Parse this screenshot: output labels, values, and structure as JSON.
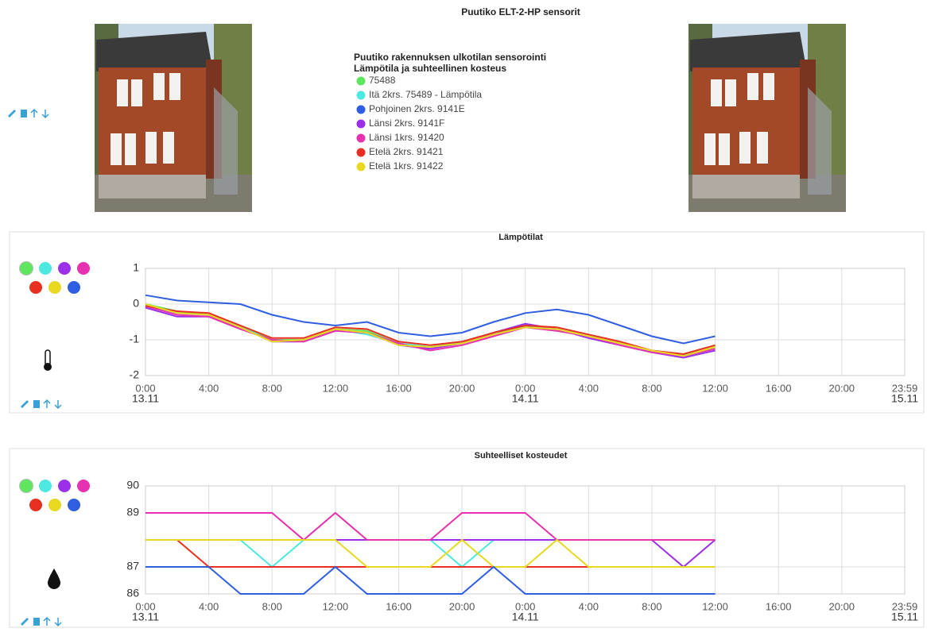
{
  "header": {
    "title": "Puutiko ELT-2-HP sensorit"
  },
  "legend": {
    "heading": [
      "Puutiko rakennuksen ulkotilan sensorointi",
      "Lämpötila ja suhteellinen kosteus"
    ],
    "items": [
      {
        "label": "75488",
        "color": "#5ee65e"
      },
      {
        "label": "Itä 2krs. 75489 - Lämpötila",
        "color": "#4de8e0"
      },
      {
        "label": "Pohjoinen 2krs. 9141E",
        "color": "#2f5fe0"
      },
      {
        "label": "Länsi 2krs. 9141F",
        "color": "#9b30e8"
      },
      {
        "label": "Länsi 1krs. 91420",
        "color": "#e632b0"
      },
      {
        "label": "Etelä 2krs. 91421",
        "color": "#e83020"
      },
      {
        "label": "Etelä 1krs. 91422",
        "color": "#e8d820"
      }
    ]
  },
  "chart_data": [
    {
      "type": "line",
      "title": "Lämpötilat",
      "x": [
        0,
        2,
        4,
        6,
        8,
        10,
        12,
        14,
        16,
        18,
        20,
        22,
        24,
        26,
        28,
        30,
        32,
        34,
        36
      ],
      "xlim": [
        0,
        47.98
      ],
      "xticks": [
        {
          "value": 0,
          "label": "0:00"
        },
        {
          "value": 4,
          "label": "4:00"
        },
        {
          "value": 8,
          "label": "8:00"
        },
        {
          "value": 12,
          "label": "12:00"
        },
        {
          "value": 16,
          "label": "16:00"
        },
        {
          "value": 20,
          "label": "20:00"
        },
        {
          "value": 24,
          "label": "0:00"
        },
        {
          "value": 28,
          "label": "4:00"
        },
        {
          "value": 32,
          "label": "8:00"
        },
        {
          "value": 36,
          "label": "12:00"
        },
        {
          "value": 40,
          "label": "16:00"
        },
        {
          "value": 44,
          "label": "20:00"
        },
        {
          "value": 47.98,
          "label": "23:59"
        }
      ],
      "date_labels": [
        {
          "value": 0,
          "label": "13.11"
        },
        {
          "value": 24,
          "label": "14.11"
        },
        {
          "value": 47.98,
          "label": "15.11"
        }
      ],
      "ylim": [
        -2,
        1
      ],
      "yticks": [
        -2,
        -1,
        0,
        1
      ],
      "grid": true,
      "series": [
        {
          "color": "#5ee65e",
          "values": [
            0,
            -0.2,
            -0.3,
            -0.6,
            -1.0,
            -1.0,
            -0.7,
            -0.75,
            -1.1,
            -1.2,
            -1.1,
            -0.85,
            -0.65,
            -0.7,
            -0.9,
            -1.1,
            -1.3,
            -1.45,
            -1.2
          ]
        },
        {
          "color": "#4de8e0",
          "values": [
            -0.05,
            -0.25,
            -0.3,
            -0.6,
            -1.05,
            -1.0,
            -0.7,
            -0.85,
            -1.1,
            -1.2,
            -1.05,
            -0.85,
            -0.6,
            -0.7,
            -0.9,
            -1.1,
            -1.3,
            -1.4,
            -1.25
          ]
        },
        {
          "color": "#9b30e8",
          "values": [
            -0.1,
            -0.35,
            -0.35,
            -0.65,
            -1.05,
            -1.05,
            -0.75,
            -0.8,
            -1.15,
            -1.25,
            -1.1,
            -0.8,
            -0.55,
            -0.7,
            -0.95,
            -1.15,
            -1.35,
            -1.5,
            -1.3
          ]
        },
        {
          "color": "#e632b0",
          "values": [
            -0.05,
            -0.3,
            -0.35,
            -0.7,
            -1.0,
            -1.05,
            -0.75,
            -0.8,
            -1.1,
            -1.3,
            -1.15,
            -0.9,
            -0.65,
            -0.75,
            -0.9,
            -1.15,
            -1.35,
            -1.45,
            -1.25
          ]
        },
        {
          "color": "#e83020",
          "values": [
            -0.05,
            -0.2,
            -0.25,
            -0.6,
            -0.95,
            -0.95,
            -0.65,
            -0.7,
            -1.05,
            -1.15,
            -1.05,
            -0.8,
            -0.6,
            -0.65,
            -0.85,
            -1.05,
            -1.3,
            -1.4,
            -1.15
          ]
        },
        {
          "color": "#e8d820",
          "values": [
            0,
            -0.25,
            -0.3,
            -0.65,
            -1.05,
            -1.0,
            -0.7,
            -0.8,
            -1.15,
            -1.2,
            -1.1,
            -0.85,
            -0.65,
            -0.7,
            -0.9,
            -1.1,
            -1.3,
            -1.45,
            -1.2
          ]
        },
        {
          "color": "#2f5fe0",
          "values": [
            0.25,
            0.1,
            0.05,
            0,
            -0.3,
            -0.5,
            -0.6,
            -0.5,
            -0.8,
            -0.9,
            -0.8,
            -0.5,
            -0.25,
            -0.15,
            -0.3,
            -0.6,
            -0.9,
            -1.1,
            -0.9
          ]
        }
      ]
    },
    {
      "type": "line",
      "title": "Suhteelliset kosteudet",
      "x": [
        0,
        2,
        4,
        6,
        8,
        10,
        12,
        14,
        16,
        18,
        20,
        22,
        24,
        26,
        28,
        30,
        32,
        34,
        36
      ],
      "xlim": [
        0,
        47.98
      ],
      "xticks": [
        {
          "value": 0,
          "label": "0:00"
        },
        {
          "value": 4,
          "label": "4:00"
        },
        {
          "value": 8,
          "label": "8:00"
        },
        {
          "value": 12,
          "label": "12:00"
        },
        {
          "value": 16,
          "label": "16:00"
        },
        {
          "value": 20,
          "label": "20:00"
        },
        {
          "value": 24,
          "label": "0:00"
        },
        {
          "value": 28,
          "label": "4:00"
        },
        {
          "value": 32,
          "label": "8:00"
        },
        {
          "value": 36,
          "label": "12:00"
        },
        {
          "value": 40,
          "label": "16:00"
        },
        {
          "value": 44,
          "label": "20:00"
        },
        {
          "value": 47.98,
          "label": "23:59"
        }
      ],
      "date_labels": [
        {
          "value": 0,
          "label": "13.11"
        },
        {
          "value": 24,
          "label": "14.11"
        },
        {
          "value": 47.98,
          "label": "15.11"
        }
      ],
      "ylim": [
        86,
        90
      ],
      "yticks": [
        86,
        87,
        89,
        90
      ],
      "grid": true,
      "series": [
        {
          "color": "#5ee65e",
          "values": [
            88,
            88,
            88,
            88,
            88,
            88,
            88,
            88,
            88,
            88,
            88,
            88,
            88,
            88,
            88,
            88,
            88,
            88,
            88
          ]
        },
        {
          "color": "#4de8e0",
          "values": [
            88,
            88,
            88,
            88,
            87,
            88,
            88,
            88,
            88,
            88,
            87,
            88,
            88,
            88,
            88,
            88,
            88,
            88,
            88
          ]
        },
        {
          "color": "#9b30e8",
          "values": [
            88,
            88,
            88,
            88,
            88,
            88,
            88,
            88,
            88,
            88,
            88,
            88,
            88,
            88,
            88,
            88,
            88,
            87,
            88
          ]
        },
        {
          "color": "#e632b0",
          "values": [
            89,
            89,
            89,
            89,
            89,
            88,
            89,
            88,
            88,
            88,
            89,
            89,
            89,
            88,
            88,
            88,
            88,
            88,
            88
          ]
        },
        {
          "color": "#e83020",
          "values": [
            88,
            88,
            87,
            87,
            87,
            87,
            87,
            87,
            87,
            87,
            87,
            87,
            87,
            87,
            87,
            87,
            87,
            87,
            87
          ]
        },
        {
          "color": "#e8d820",
          "values": [
            88,
            88,
            88,
            88,
            88,
            88,
            88,
            87,
            87,
            87,
            88,
            87,
            87,
            88,
            87,
            87,
            87,
            87,
            87
          ]
        },
        {
          "color": "#2f5fe0",
          "values": [
            87,
            87,
            87,
            86,
            86,
            86,
            87,
            86,
            86,
            86,
            86,
            87,
            86,
            86,
            86,
            86,
            86,
            86,
            86
          ]
        }
      ]
    }
  ]
}
